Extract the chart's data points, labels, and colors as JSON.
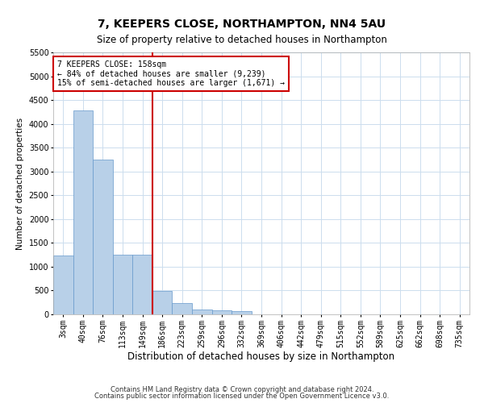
{
  "title": "7, KEEPERS CLOSE, NORTHAMPTON, NN4 5AU",
  "subtitle": "Size of property relative to detached houses in Northampton",
  "xlabel": "Distribution of detached houses by size in Northampton",
  "ylabel": "Number of detached properties",
  "footer_line1": "Contains HM Land Registry data © Crown copyright and database right 2024.",
  "footer_line2": "Contains public sector information licensed under the Open Government Licence v3.0.",
  "annotation_title": "7 KEEPERS CLOSE: 158sqm",
  "annotation_line1": "← 84% of detached houses are smaller (9,239)",
  "annotation_line2": "15% of semi-detached houses are larger (1,671) →",
  "bar_color": "#b8d0e8",
  "bar_edge_color": "#6699cc",
  "vline_color": "#cc0000",
  "annotation_box_edgecolor": "#cc0000",
  "background_color": "#ffffff",
  "grid_color": "#ccddee",
  "categories": [
    "3sqm",
    "40sqm",
    "76sqm",
    "113sqm",
    "149sqm",
    "186sqm",
    "223sqm",
    "259sqm",
    "296sqm",
    "332sqm",
    "369sqm",
    "406sqm",
    "442sqm",
    "479sqm",
    "515sqm",
    "552sqm",
    "589sqm",
    "625sqm",
    "662sqm",
    "698sqm",
    "735sqm"
  ],
  "values": [
    1230,
    4280,
    3250,
    1260,
    1260,
    490,
    230,
    110,
    80,
    60,
    0,
    0,
    0,
    0,
    0,
    0,
    0,
    0,
    0,
    0,
    0
  ],
  "ylim": [
    0,
    5500
  ],
  "yticks": [
    0,
    500,
    1000,
    1500,
    2000,
    2500,
    3000,
    3500,
    4000,
    4500,
    5000,
    5500
  ],
  "vline_x_index": 4.5,
  "title_fontsize": 10,
  "subtitle_fontsize": 8.5,
  "xlabel_fontsize": 8.5,
  "ylabel_fontsize": 7.5,
  "tick_fontsize": 7,
  "annotation_fontsize": 7,
  "footer_fontsize": 6
}
